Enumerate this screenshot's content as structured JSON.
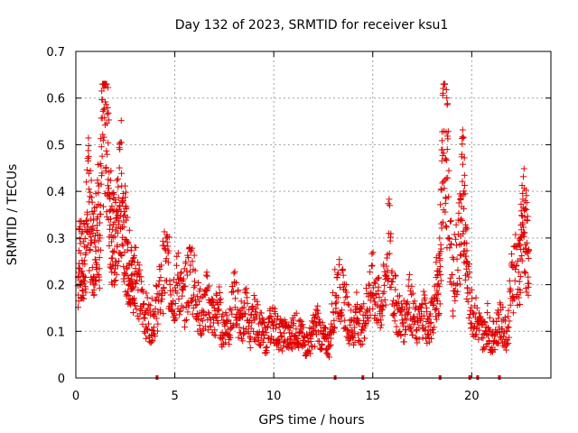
{
  "chart_data": {
    "type": "scatter",
    "title": "Day 132 of 2023, SRMTID for receiver ksu1",
    "xlabel": "GPS time / hours",
    "ylabel": "SRMTID / TECUs",
    "xlim": [
      0,
      24
    ],
    "ylim": [
      0,
      0.7
    ],
    "xticks": [
      0,
      5,
      10,
      15,
      20
    ],
    "xtick_labels": [
      "0",
      "5",
      "10",
      "15",
      "20"
    ],
    "yticks": [
      0,
      0.1,
      0.2,
      0.3,
      0.4,
      0.5,
      0.6,
      0.7
    ],
    "ytick_labels": [
      "0",
      "0.1",
      "0.2",
      "0.3",
      "0.4",
      "0.5",
      "0.6",
      "0.7"
    ],
    "grid": true,
    "marker": "+",
    "color": "#e00000",
    "series": [
      {
        "name": "ksu1",
        "x": [
          0.1,
          0.2,
          0.3,
          0.4,
          0.5,
          0.6,
          0.7,
          0.8,
          0.9,
          1.0,
          1.1,
          1.2,
          1.3,
          1.4,
          1.5,
          1.6,
          1.7,
          1.8,
          1.9,
          2.0,
          2.1,
          2.2,
          2.3,
          2.4,
          2.5,
          2.6,
          2.7,
          2.8,
          2.9,
          3.0,
          3.2,
          3.4,
          3.6,
          3.8,
          4.0,
          4.2,
          4.4,
          4.6,
          4.8,
          5.0,
          5.2,
          5.4,
          5.6,
          5.8,
          6.0,
          6.2,
          6.4,
          6.6,
          6.8,
          7.0,
          7.2,
          7.4,
          7.6,
          7.8,
          8.0,
          8.2,
          8.4,
          8.6,
          8.8,
          9.0,
          9.2,
          9.4,
          9.6,
          9.8,
          10.0,
          10.2,
          10.4,
          10.6,
          10.8,
          11.0,
          11.2,
          11.4,
          11.6,
          11.8,
          12.0,
          12.2,
          12.4,
          12.6,
          12.8,
          13.0,
          13.2,
          13.4,
          13.6,
          13.8,
          14.0,
          14.2,
          14.4,
          14.6,
          14.8,
          15.0,
          15.2,
          15.4,
          15.6,
          15.8,
          16.0,
          16.2,
          16.4,
          16.6,
          16.8,
          17.0,
          17.2,
          17.4,
          17.6,
          17.8,
          18.0,
          18.2,
          18.3,
          18.4,
          18.5,
          18.6,
          18.7,
          18.8,
          19.0,
          19.2,
          19.4,
          19.5,
          19.6,
          19.7,
          19.8,
          20.0,
          20.2,
          20.4,
          20.6,
          20.8,
          21.0,
          21.2,
          21.4,
          21.6,
          21.8,
          22.0,
          22.2,
          22.4,
          22.5,
          22.6,
          22.7,
          22.8
        ],
        "y": [
          0.2,
          0.3,
          0.22,
          0.25,
          0.28,
          0.4,
          0.35,
          0.3,
          0.27,
          0.32,
          0.36,
          0.3,
          0.45,
          0.55,
          0.62,
          0.5,
          0.4,
          0.32,
          0.3,
          0.28,
          0.33,
          0.38,
          0.41,
          0.35,
          0.3,
          0.26,
          0.24,
          0.22,
          0.2,
          0.25,
          0.18,
          0.15,
          0.13,
          0.12,
          0.14,
          0.17,
          0.22,
          0.25,
          0.2,
          0.18,
          0.21,
          0.16,
          0.19,
          0.24,
          0.2,
          0.15,
          0.13,
          0.17,
          0.15,
          0.12,
          0.16,
          0.1,
          0.12,
          0.11,
          0.18,
          0.14,
          0.12,
          0.15,
          0.1,
          0.13,
          0.12,
          0.1,
          0.08,
          0.11,
          0.12,
          0.1,
          0.09,
          0.1,
          0.08,
          0.11,
          0.1,
          0.09,
          0.07,
          0.08,
          0.1,
          0.12,
          0.09,
          0.08,
          0.07,
          0.15,
          0.2,
          0.18,
          0.16,
          0.12,
          0.1,
          0.14,
          0.11,
          0.13,
          0.18,
          0.2,
          0.17,
          0.15,
          0.19,
          0.3,
          0.2,
          0.15,
          0.13,
          0.12,
          0.18,
          0.14,
          0.11,
          0.12,
          0.15,
          0.1,
          0.13,
          0.2,
          0.18,
          0.25,
          0.4,
          0.56,
          0.48,
          0.42,
          0.2,
          0.25,
          0.3,
          0.38,
          0.42,
          0.3,
          0.2,
          0.15,
          0.13,
          0.11,
          0.09,
          0.12,
          0.08,
          0.1,
          0.12,
          0.11,
          0.09,
          0.2,
          0.25,
          0.22,
          0.28,
          0.35,
          0.32,
          0.27
        ]
      }
    ],
    "bottom_markers_x": [
      4.1,
      13.1,
      14.5,
      18.4,
      19.9,
      20.3,
      21.4
    ]
  }
}
